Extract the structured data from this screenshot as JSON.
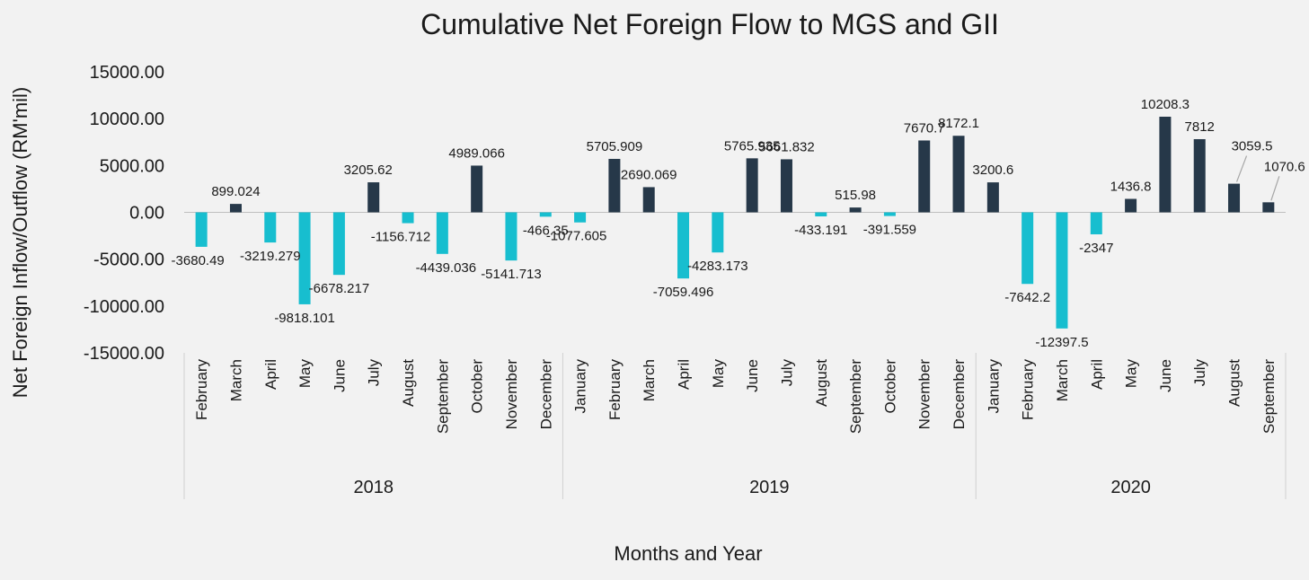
{
  "chart_data": {
    "type": "bar",
    "title": "Cumulative Net Foreign Flow to MGS and GII",
    "xlabel": "Months and Year",
    "ylabel": "Net Foreign Inflow/Outflow (RM'mil)",
    "ylim": [
      -15000,
      15000
    ],
    "yticks": [
      "15000.00",
      "10000.00",
      "5000.00",
      "0.00",
      "-5000.00",
      "-10000.00",
      "-15000.00"
    ],
    "ytick_values": [
      15000,
      10000,
      5000,
      0,
      -5000,
      -10000,
      -15000
    ],
    "grid": false,
    "legend": "none",
    "colors": {
      "positive": "#263849",
      "negative": "#17becf",
      "axis": "#bfbfbf",
      "leader": "#a6a6a6"
    },
    "groups": [
      {
        "year": "2018",
        "categories": [
          "February",
          "March",
          "April",
          "May",
          "June",
          "July",
          "August",
          "September",
          "October",
          "November",
          "December"
        ],
        "values": [
          -3680.49,
          899.024,
          -3219.279,
          -9818.101,
          -6678.217,
          3205.62,
          -1156.712,
          -4439.036,
          4989.066,
          -5141.713,
          -466.35
        ],
        "labels": [
          "-3680.49",
          "899.024",
          "-3219.279",
          "-9818.101",
          "-6678.217",
          "3205.62",
          "-1156.712",
          "-4439.036",
          "4989.066",
          "-5141.713",
          "-466.35"
        ]
      },
      {
        "year": "2019",
        "categories": [
          "January",
          "February",
          "March",
          "April",
          "May",
          "June",
          "July",
          "August",
          "September",
          "October",
          "November",
          "December"
        ],
        "values": [
          -1077.605,
          5705.909,
          2690.069,
          -7059.496,
          -4283.173,
          5765.935,
          5661.832,
          -433.191,
          515.98,
          -391.559,
          7670.7,
          8172.1
        ],
        "labels": [
          "-1077.605",
          "5705.909",
          "2690.069",
          "-7059.496",
          "-4283.173",
          "5765.935",
          "5661.832",
          "-433.191",
          "515.98",
          "-391.559",
          "7670.7",
          "8172.1"
        ]
      },
      {
        "year": "2020",
        "categories": [
          "January",
          "February",
          "March",
          "April",
          "May",
          "June",
          "July",
          "August",
          "September"
        ],
        "values": [
          3200.6,
          -7642.2,
          -12397.5,
          -2347,
          1436.8,
          10208.3,
          7812,
          3059.5,
          1070.6
        ],
        "labels": [
          "3200.6",
          "-7642.2",
          "-12397.5",
          "-2347",
          "1436.8",
          "10208.3",
          "7812",
          "3059.5",
          "1070.6"
        ]
      }
    ]
  }
}
